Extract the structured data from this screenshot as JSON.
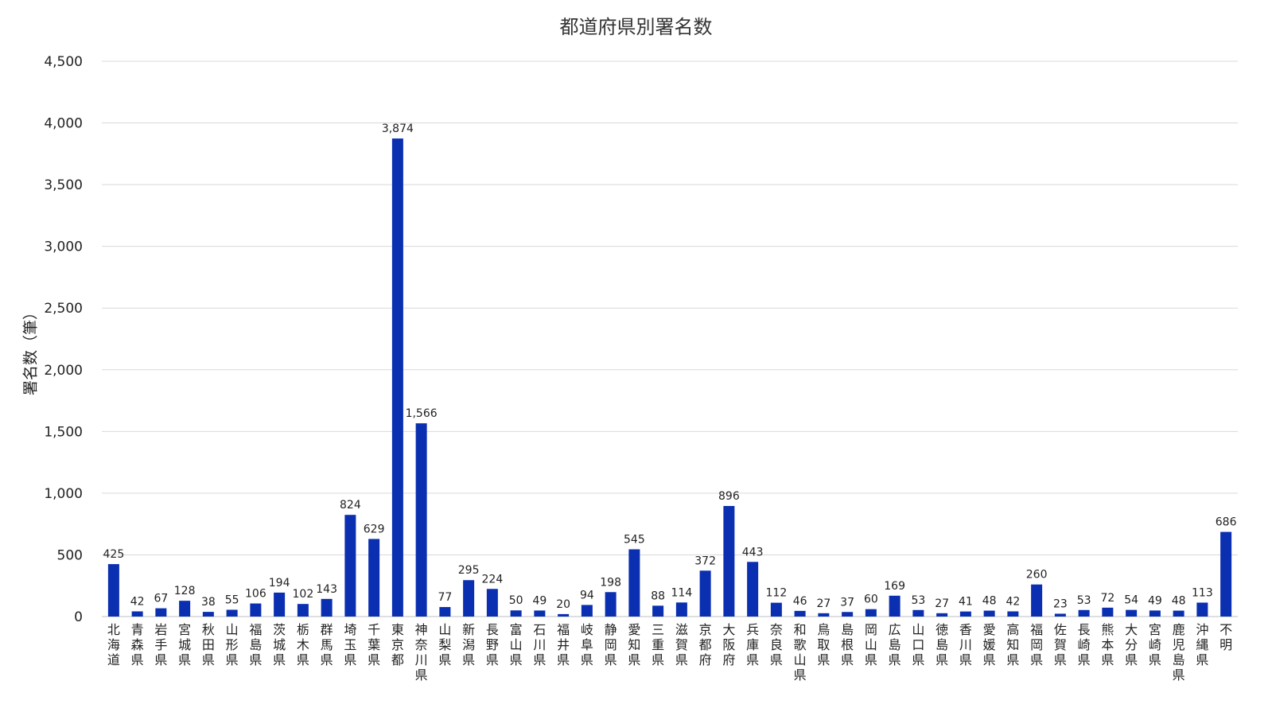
{
  "chart_data": {
    "type": "bar",
    "title": "都道府県別署名数",
    "xlabel": "",
    "ylabel": "署名数（筆）",
    "ylim": [
      0,
      4500
    ],
    "yticks": [
      0,
      500,
      1000,
      1500,
      2000,
      2500,
      3000,
      3500,
      4000,
      4500
    ],
    "ytick_labels": [
      "0",
      "500",
      "1,000",
      "1,500",
      "2,000",
      "2,500",
      "3,000",
      "3,500",
      "4,000",
      "4,500"
    ],
    "grid": "horizontal",
    "legend": "none",
    "bar_color": "#0a2fb0",
    "categories": [
      "北海道",
      "青森県",
      "岩手県",
      "宮城県",
      "秋田県",
      "山形県",
      "福島県",
      "茨城県",
      "栃木県",
      "群馬県",
      "埼玉県",
      "千葉県",
      "東京都",
      "神奈川県",
      "山梨県",
      "新潟県",
      "長野県",
      "富山県",
      "石川県",
      "福井県",
      "岐阜県",
      "静岡県",
      "愛知県",
      "三重県",
      "滋賀県",
      "京都府",
      "大阪府",
      "兵庫県",
      "奈良県",
      "和歌山県",
      "鳥取県",
      "島根県",
      "岡山県",
      "広島県",
      "山口県",
      "徳島県",
      "香川県",
      "愛媛県",
      "高知県",
      "福岡県",
      "佐賀県",
      "長崎県",
      "熊本県",
      "大分県",
      "宮崎県",
      "鹿児島県",
      "沖縄県",
      "不明"
    ],
    "values": [
      425,
      42,
      67,
      128,
      38,
      55,
      106,
      194,
      102,
      143,
      824,
      629,
      3874,
      1566,
      77,
      295,
      224,
      50,
      49,
      20,
      94,
      198,
      545,
      88,
      114,
      372,
      896,
      443,
      112,
      46,
      27,
      37,
      60,
      169,
      53,
      27,
      41,
      48,
      42,
      260,
      23,
      53,
      72,
      54,
      49,
      48,
      113,
      686
    ],
    "value_labels": [
      "425",
      "42",
      "67",
      "128",
      "38",
      "55",
      "106",
      "194",
      "102",
      "143",
      "824",
      "629",
      "3,874",
      "1,566",
      "77",
      "295",
      "224",
      "50",
      "49",
      "20",
      "94",
      "198",
      "545",
      "88",
      "114",
      "372",
      "896",
      "443",
      "112",
      "46",
      "27",
      "37",
      "60",
      "169",
      "53",
      "27",
      "41",
      "48",
      "42",
      "260",
      "23",
      "53",
      "72",
      "54",
      "49",
      "48",
      "113",
      "686"
    ]
  }
}
